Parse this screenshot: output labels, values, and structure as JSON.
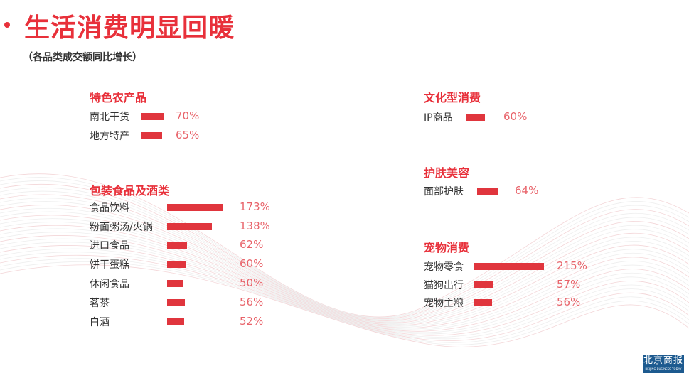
{
  "header": {
    "title": "生活消费明显回暖",
    "subtitle": "（各品类成交额同比增长）"
  },
  "logo": {
    "text": "北京商报",
    "subtext": "BEIJING BUSINESS TODAY"
  },
  "colors": {
    "accent": "#e8303a",
    "bar": "#e0353d",
    "value": "#e8636a"
  },
  "chart_data": {
    "type": "bar",
    "orientation": "horizontal",
    "unit": "%",
    "groups": [
      {
        "title": "特色农产品",
        "categories": [
          "南北干货",
          "地方特产"
        ],
        "values": [
          70,
          65
        ],
        "labels": [
          "70%",
          "65%"
        ]
      },
      {
        "title": "包装食品及酒类",
        "categories": [
          "食品饮料",
          "粉面粥汤/火锅",
          "进口食品",
          "饼干蛋糕",
          "休闲食品",
          "茗茶",
          "白酒"
        ],
        "values": [
          173,
          138,
          62,
          60,
          50,
          56,
          52
        ],
        "labels": [
          "173%",
          "138%",
          "62%",
          "60%",
          "50%",
          "56%",
          "52%"
        ]
      },
      {
        "title": "文化型消费",
        "categories": [
          "IP商品"
        ],
        "values": [
          60
        ],
        "labels": [
          "60%"
        ]
      },
      {
        "title": "护肤美容",
        "categories": [
          "面部护肤"
        ],
        "values": [
          64
        ],
        "labels": [
          "64%"
        ]
      },
      {
        "title": "宠物消费",
        "categories": [
          "宠物零食",
          "猫狗出行",
          "宠物主粮"
        ],
        "values": [
          215,
          57,
          56
        ],
        "labels": [
          "215%",
          "57%",
          "56%"
        ]
      }
    ]
  }
}
